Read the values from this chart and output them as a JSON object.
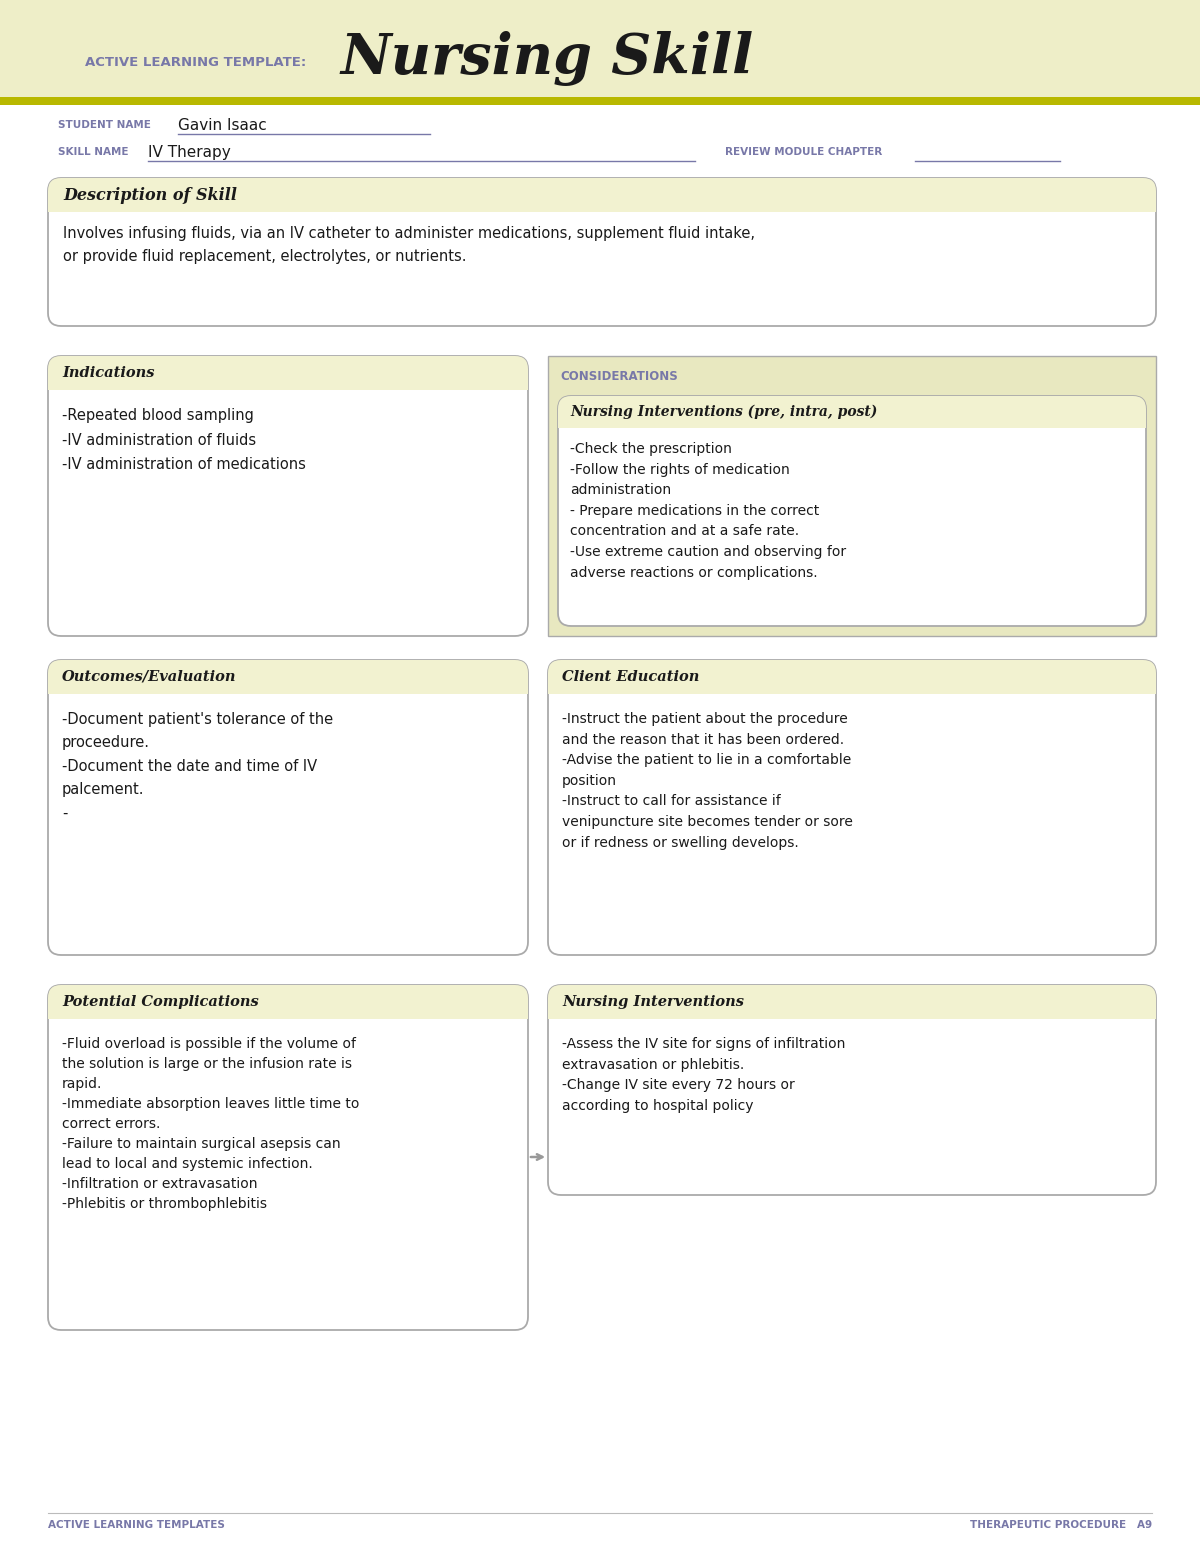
{
  "page_bg": "#ffffff",
  "header_bg": "#eeeec8",
  "stripe_color": "#b8b800",
  "box_bg": "#f2f2d0",
  "box_border": "#aaaaaa",
  "white": "#ffffff",
  "purple": "#7878a8",
  "dark": "#1a1a1a",
  "considerations_bg": "#e8e8c0",
  "title_label": "ACTIVE LEARNING TEMPLATE:",
  "title_main": "Nursing Skill",
  "student_label": "STUDENT NAME",
  "student_name": "Gavin Isaac",
  "skill_label": "SKILL NAME",
  "skill_name": "IV Therapy",
  "review_label": "REVIEW MODULE CHAPTER",
  "desc_title": "Description of Skill",
  "desc_text": "Involves infusing fluids, via an IV catheter to administer medications, supplement fluid intake,\nor provide fluid replacement, electrolytes, or nutrients.",
  "indications_title": "Indications",
  "indications_text": "-Repeated blood sampling\n-IV administration of fluids\n-IV administration of medications",
  "considerations_label": "CONSIDERATIONS",
  "nursing_int_title": "Nursing Interventions (pre, intra, post)",
  "nursing_int_text": "-Check the prescription\n-Follow the rights of medication\nadministration\n- Prepare medications in the correct\nconcentration and at a safe rate.\n-Use extreme caution and observing for\nadverse reactions or complications.",
  "outcomes_title": "Outcomes/Evaluation",
  "outcomes_text": "-Document patient's tolerance of the\nproceedure.\n-Document the date and time of IV\npalcement.\n-",
  "client_ed_title": "Client Education",
  "client_ed_text": "-Instruct the patient about the procedure\nand the reason that it has been ordered.\n-Advise the patient to lie in a comfortable\nposition\n-Instruct to call for assistance if\nvenipuncture site becomes tender or sore\nor if redness or swelling develops.",
  "complications_title": "Potential Complications",
  "complications_text": "-Fluid overload is possible if the volume of\nthe solution is large or the infusion rate is\nrapid.\n-Immediate absorption leaves little time to\ncorrect errors.\n-Failure to maintain surgical asepsis can\nlead to local and systemic infection.\n-Infiltration or extravasation\n-Phlebitis or thrombophlebitis",
  "nursing_int2_title": "Nursing Interventions",
  "nursing_int2_text": "-Assess the IV site for signs of infiltration\nextravasation or phlebitis.\n-Change IV site every 72 hours or\naccording to hospital policy",
  "footer_left": "ACTIVE LEARNING TEMPLATES",
  "footer_right": "THERAPEUTIC PROCEDURE   A9"
}
